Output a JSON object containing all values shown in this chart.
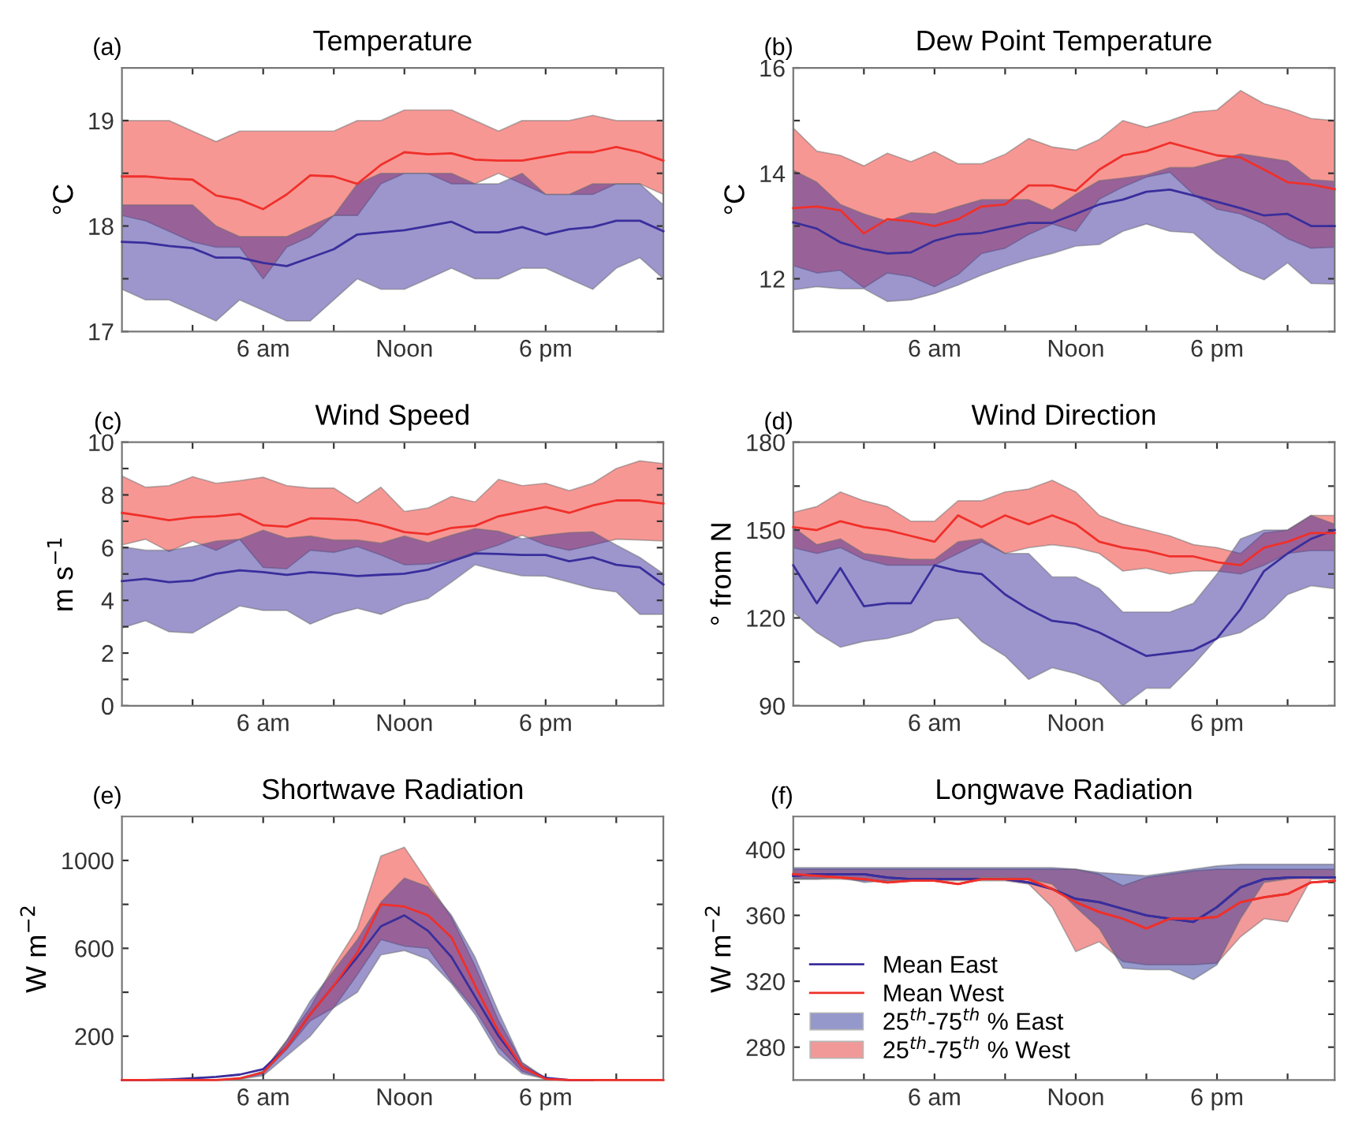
{
  "chart_data": [
    {
      "type": "line",
      "title": "Temperature",
      "ylabel": "°C",
      "annotations": [
        "(a)"
      ],
      "legend": false,
      "categories": [
        null,
        null,
        null,
        null,
        null,
        null,
        "6 am",
        null,
        null,
        null,
        null,
        null,
        "Noon",
        null,
        null,
        null,
        null,
        null,
        "6 pm",
        null,
        null,
        null,
        null,
        null
      ],
      "ylim": [
        17,
        19.5
      ],
      "yticks": [
        17,
        {
          "value": 17.5,
          "label": null
        },
        18,
        {
          "value": 18.5,
          "label": null
        },
        19
      ],
      "series": [
        {
          "color": "#3a2e9c",
          "values": [
            17.85,
            17.84,
            17.81,
            17.79,
            17.7,
            17.7,
            17.65,
            17.62,
            17.7,
            17.78,
            17.92,
            17.94,
            17.96,
            18.0,
            18.04,
            17.94,
            17.94,
            17.99,
            17.92,
            17.97,
            17.99,
            18.05,
            18.05,
            17.95
          ],
          "lower": [
            17.4,
            17.3,
            17.3,
            17.2,
            17.1,
            17.3,
            17.2,
            17.1,
            17.1,
            17.3,
            17.5,
            17.4,
            17.4,
            17.5,
            17.6,
            17.5,
            17.5,
            17.6,
            17.6,
            17.5,
            17.4,
            17.6,
            17.7,
            17.5
          ],
          "upper": [
            18.2,
            18.2,
            18.2,
            18.2,
            18.0,
            17.9,
            17.9,
            17.9,
            18.0,
            18.1,
            18.4,
            18.5,
            18.5,
            18.5,
            18.5,
            18.4,
            18.4,
            18.5,
            18.3,
            18.3,
            18.4,
            18.4,
            18.4,
            18.2
          ]
        },
        {
          "color": "#f0302a",
          "values": [
            18.47,
            18.47,
            18.45,
            18.44,
            18.29,
            18.25,
            18.16,
            18.3,
            18.48,
            18.47,
            18.4,
            18.58,
            18.7,
            18.68,
            18.69,
            18.63,
            18.62,
            18.62,
            18.66,
            18.7,
            18.7,
            18.75,
            18.7,
            18.62
          ],
          "lower": [
            18.1,
            18.05,
            17.95,
            17.85,
            17.8,
            17.8,
            17.5,
            17.8,
            17.9,
            18.1,
            18.1,
            18.4,
            18.5,
            18.5,
            18.4,
            18.4,
            18.5,
            18.4,
            18.3,
            18.3,
            18.3,
            18.4,
            18.4,
            18.3
          ],
          "upper": [
            19.0,
            19.0,
            19.0,
            18.9,
            18.8,
            18.9,
            18.9,
            18.9,
            18.9,
            18.9,
            19.0,
            19.0,
            19.1,
            19.1,
            19.1,
            19.0,
            18.9,
            19.0,
            19.0,
            19.0,
            19.05,
            19.0,
            19.0,
            19.0
          ]
        }
      ]
    },
    {
      "type": "line",
      "title": "Dew Point Temperature",
      "ylabel": "°C",
      "annotations": [
        "(b)"
      ],
      "legend": false,
      "categories": [
        null,
        null,
        null,
        null,
        null,
        null,
        "6 am",
        null,
        null,
        null,
        null,
        null,
        "Noon",
        null,
        null,
        null,
        null,
        null,
        "6 pm",
        null,
        null,
        null,
        null,
        null
      ],
      "ylim": [
        11,
        16
      ],
      "yticks": [
        {
          "value": 11,
          "label": null
        },
        12,
        {
          "value": 13,
          "label": null
        },
        14,
        {
          "value": 15,
          "label": null
        },
        16
      ],
      "series": [
        {
          "color": "#3a2e9c",
          "values": [
            13.07,
            12.95,
            12.69,
            12.56,
            12.48,
            12.5,
            12.72,
            12.84,
            12.87,
            12.97,
            13.06,
            13.06,
            13.23,
            13.41,
            13.5,
            13.65,
            13.69,
            13.58,
            13.46,
            13.34,
            13.2,
            13.23,
            13.0,
            13.0
          ],
          "lower": [
            11.79,
            11.85,
            11.81,
            11.81,
            11.57,
            11.6,
            11.72,
            11.88,
            12.07,
            12.23,
            12.37,
            12.48,
            12.62,
            12.65,
            12.9,
            13.04,
            12.9,
            12.87,
            12.48,
            12.16,
            11.98,
            12.3,
            11.91,
            11.9
          ],
          "upper": [
            14.06,
            13.83,
            13.41,
            13.23,
            13.09,
            13.25,
            13.23,
            13.37,
            13.5,
            13.5,
            13.5,
            13.3,
            13.6,
            13.86,
            13.91,
            13.97,
            14.11,
            14.11,
            14.23,
            14.37,
            14.3,
            14.23,
            13.88,
            13.85
          ]
        },
        {
          "color": "#f0302a",
          "values": [
            13.34,
            13.37,
            13.3,
            12.86,
            13.13,
            13.09,
            13.0,
            13.13,
            13.37,
            13.41,
            13.77,
            13.77,
            13.67,
            14.07,
            14.34,
            14.42,
            14.58,
            14.46,
            14.34,
            14.3,
            14.07,
            13.83,
            13.79,
            13.7
          ],
          "lower": [
            12.25,
            12.11,
            12.16,
            11.83,
            12.11,
            12.04,
            11.85,
            12.08,
            12.48,
            12.58,
            12.84,
            13.04,
            12.9,
            13.51,
            13.74,
            13.93,
            14.02,
            13.6,
            13.32,
            13.23,
            13.04,
            12.76,
            12.58,
            12.6
          ],
          "upper": [
            14.86,
            14.42,
            14.34,
            14.14,
            14.38,
            14.22,
            14.41,
            14.18,
            14.18,
            14.36,
            14.66,
            14.5,
            14.44,
            14.64,
            15.0,
            14.87,
            15.0,
            15.16,
            15.2,
            15.57,
            15.32,
            15.2,
            15.04,
            15.0
          ]
        }
      ]
    },
    {
      "type": "line",
      "title": "Wind Speed",
      "ylabel": "m s$^{−1}$",
      "annotations": [
        "(c)"
      ],
      "legend": false,
      "categories": [
        null,
        null,
        null,
        null,
        null,
        null,
        "6 am",
        null,
        null,
        null,
        null,
        null,
        "Noon",
        null,
        null,
        null,
        null,
        null,
        "6 pm",
        null,
        null,
        null,
        null,
        null
      ],
      "ylim": [
        0,
        10
      ],
      "yticks": [
        0,
        {
          "value": 1,
          "label": null
        },
        2,
        {
          "value": 3,
          "label": null
        },
        4,
        {
          "value": 5,
          "label": null
        },
        6,
        {
          "value": 7,
          "label": null
        },
        8,
        {
          "value": 9,
          "label": null
        },
        10
      ],
      "series": [
        {
          "color": "#3a2e9c",
          "values": [
            4.73,
            4.82,
            4.69,
            4.75,
            5.01,
            5.14,
            5.07,
            4.97,
            5.07,
            5.01,
            4.92,
            4.97,
            5.01,
            5.16,
            5.48,
            5.78,
            5.76,
            5.72,
            5.72,
            5.48,
            5.63,
            5.35,
            5.25,
            4.6
          ],
          "lower": [
            2.95,
            3.23,
            2.81,
            2.76,
            3.28,
            3.79,
            3.62,
            3.62,
            3.1,
            3.47,
            3.7,
            3.47,
            3.85,
            4.07,
            4.69,
            5.35,
            5.12,
            4.93,
            4.92,
            4.69,
            4.45,
            4.32,
            3.47,
            3.47
          ],
          "upper": [
            6.04,
            5.9,
            5.9,
            6.04,
            6.25,
            6.32,
            6.66,
            6.36,
            6.44,
            6.29,
            6.29,
            6.17,
            6.44,
            6.19,
            6.47,
            6.72,
            6.62,
            6.34,
            6.47,
            6.57,
            6.6,
            6.1,
            5.63,
            5.01
          ]
        },
        {
          "color": "#f0302a",
          "values": [
            7.32,
            7.19,
            7.04,
            7.15,
            7.19,
            7.28,
            6.85,
            6.79,
            7.11,
            7.09,
            7.04,
            6.85,
            6.59,
            6.51,
            6.75,
            6.83,
            7.19,
            7.37,
            7.54,
            7.32,
            7.6,
            7.79,
            7.79,
            7.67
          ],
          "lower": [
            6.1,
            6.32,
            5.85,
            6.25,
            5.9,
            6.32,
            5.25,
            5.2,
            5.9,
            5.82,
            6.04,
            5.72,
            5.35,
            5.38,
            5.53,
            5.82,
            6.1,
            6.47,
            6.1,
            5.9,
            6.1,
            6.32,
            6.29,
            6.25
          ],
          "upper": [
            8.72,
            8.29,
            8.35,
            8.69,
            8.44,
            8.54,
            8.67,
            8.35,
            8.26,
            8.26,
            7.69,
            8.29,
            7.37,
            7.5,
            7.94,
            7.73,
            8.59,
            8.35,
            8.44,
            8.16,
            8.44,
            9.0,
            9.29,
            9.19
          ]
        }
      ]
    },
    {
      "type": "line",
      "title": "Wind Direction",
      "ylabel": "° from N",
      "annotations": [
        "(d)"
      ],
      "legend": false,
      "categories": [
        null,
        null,
        null,
        null,
        null,
        null,
        "6 am",
        null,
        null,
        null,
        null,
        null,
        "Noon",
        null,
        null,
        null,
        null,
        null,
        "6 pm",
        null,
        null,
        null,
        null,
        null
      ],
      "ylim": [
        90,
        180
      ],
      "yticks": [
        90,
        {
          "value": 105,
          "label": null
        },
        120,
        {
          "value": 135,
          "label": null
        },
        150,
        {
          "value": 165,
          "label": null
        },
        180
      ],
      "series": [
        {
          "color": "#3a2e9c",
          "values": [
            138,
            125,
            137,
            124,
            125,
            125,
            138,
            136,
            135,
            128,
            123,
            119,
            118,
            115,
            111,
            107,
            108,
            109,
            113,
            123,
            136,
            142,
            147,
            150
          ],
          "lower": [
            122,
            115,
            110,
            112,
            113,
            115,
            119,
            120,
            112,
            107,
            99,
            103,
            101,
            98,
            90,
            96,
            96,
            104,
            113,
            115,
            120,
            128,
            131,
            130
          ],
          "upper": [
            151,
            145,
            147,
            142,
            141,
            140,
            140,
            146,
            147,
            142,
            142,
            134,
            134,
            130,
            122,
            122,
            122,
            125,
            135,
            147,
            150,
            150,
            155,
            152
          ]
        },
        {
          "color": "#f0302a",
          "values": [
            151,
            150,
            153,
            151,
            150,
            148,
            146,
            155,
            151,
            155,
            152,
            155,
            152,
            146,
            144,
            143,
            141,
            141,
            139,
            138,
            144,
            146,
            149,
            149
          ],
          "lower": [
            144,
            142,
            144,
            140,
            138,
            138,
            138,
            142,
            146,
            142,
            144,
            145,
            144,
            142,
            136,
            137,
            135,
            136,
            136,
            135,
            138,
            142,
            143,
            143
          ],
          "upper": [
            156,
            158,
            163,
            160,
            158,
            153,
            153,
            160,
            160,
            163,
            164,
            167,
            163,
            155,
            152,
            150,
            148,
            145,
            144,
            142,
            149,
            150,
            155,
            155
          ]
        }
      ]
    },
    {
      "type": "line",
      "title": "Shortwave Radiation",
      "ylabel": "W m$^{−2}$",
      "annotations": [
        "(e)"
      ],
      "legend": false,
      "categories": [
        null,
        null,
        null,
        null,
        null,
        null,
        "6 am",
        null,
        null,
        null,
        null,
        null,
        "Noon",
        null,
        null,
        null,
        null,
        null,
        "6 pm",
        null,
        null,
        null,
        null,
        null
      ],
      "ylim": [
        0,
        1200
      ],
      "yticks": [
        200,
        {
          "value": 400,
          "label": null
        },
        600,
        {
          "value": 800,
          "label": null
        },
        1000
      ],
      "series": [
        {
          "color": "#3a2e9c",
          "values": [
            0,
            0,
            3,
            8,
            15,
            25,
            50,
            150,
            300,
            430,
            560,
            700,
            750,
            680,
            560,
            380,
            200,
            60,
            10,
            0,
            0,
            null,
            null,
            null
          ],
          "lower": [
            0,
            0,
            0,
            0,
            0,
            5,
            20,
            110,
            200,
            330,
            400,
            570,
            590,
            550,
            440,
            300,
            120,
            30,
            5,
            0,
            0,
            0,
            0,
            0
          ],
          "upper": [
            0,
            0,
            0,
            0,
            0,
            5,
            40,
            180,
            360,
            500,
            640,
            810,
            920,
            880,
            750,
            560,
            310,
            80,
            10,
            0,
            0,
            0,
            0,
            0
          ]
        },
        {
          "color": "#f0302a",
          "values": [
            0,
            0,
            0,
            0,
            0,
            8,
            35,
            150,
            300,
            430,
            580,
            800,
            790,
            750,
            650,
            430,
            220,
            60,
            5,
            0,
            0,
            0,
            0,
            0
          ],
          "lower": [
            0,
            0,
            0,
            0,
            0,
            5,
            30,
            140,
            270,
            330,
            480,
            640,
            610,
            600,
            450,
            320,
            150,
            40,
            5,
            0,
            0,
            0,
            0,
            0
          ],
          "upper": [
            0,
            0,
            0,
            0,
            0,
            10,
            40,
            180,
            330,
            520,
            690,
            1020,
            1060,
            900,
            740,
            520,
            270,
            80,
            5,
            0,
            0,
            0,
            0,
            0
          ]
        }
      ]
    },
    {
      "type": "line",
      "title": "Longwave Radiation",
      "ylabel": "W m$^{−2}$",
      "annotations": [
        "(f)"
      ],
      "legend": "bottom left",
      "categories": [
        null,
        null,
        null,
        null,
        null,
        null,
        "6 am",
        null,
        null,
        null,
        null,
        null,
        "Noon",
        null,
        null,
        null,
        null,
        null,
        "6 pm",
        null,
        null,
        null,
        null,
        null
      ],
      "ylim": [
        260,
        420
      ],
      "yticks": [
        280,
        {
          "value": 300,
          "label": null
        },
        320,
        {
          "value": 340,
          "label": null
        },
        360,
        {
          "value": 380,
          "label": null
        },
        400
      ],
      "series": [
        {
          "name": "Mean East",
          "color": "#3a2e9c",
          "values": [
            384,
            385,
            385,
            385,
            383,
            382,
            382,
            382,
            382,
            382,
            380,
            376,
            370,
            368,
            364,
            360,
            358,
            356,
            365,
            377,
            382,
            383,
            383,
            383
          ]
        },
        {
          "name": "Mean West",
          "color": "#f0302a",
          "values": [
            385,
            384,
            383,
            382,
            380,
            381,
            381,
            379,
            382,
            382,
            382,
            376,
            368,
            362,
            358,
            352,
            358,
            358,
            359,
            368,
            371,
            373,
            380,
            381
          ]
        },
        {
          "name": "25$^{th}$-75$^{th}$ % East",
          "color": "#2b3399",
          "values": [
            384,
            385,
            385,
            385,
            383,
            382,
            382,
            382,
            382,
            382,
            380,
            376,
            370,
            368,
            364,
            360,
            358,
            356,
            365,
            377,
            382,
            383,
            383,
            383
          ],
          "lower": [
            382,
            382,
            383,
            380,
            381,
            382,
            382,
            382,
            383,
            383,
            382,
            379,
            365,
            352,
            328,
            327,
            327,
            321,
            330,
            358,
            380,
            382,
            383,
            383
          ],
          "upper": [
            389,
            389,
            389,
            389,
            389,
            389,
            389,
            389,
            389,
            389,
            389,
            389,
            388,
            386,
            385,
            384,
            386,
            388,
            390,
            391,
            391,
            391,
            391,
            391
          ]
        },
        {
          "name": "25$^{th}$-75$^{th}$ % West",
          "color": "#e53636",
          "values": [
            385,
            384,
            383,
            382,
            380,
            381,
            381,
            379,
            382,
            382,
            382,
            376,
            368,
            362,
            358,
            352,
            358,
            358,
            359,
            368,
            371,
            373,
            380,
            381
          ],
          "lower": [
            382,
            382,
            382,
            381,
            381,
            381,
            381,
            381,
            381,
            381,
            379,
            365,
            338,
            344,
            332,
            330,
            330,
            330,
            331,
            347,
            358,
            356,
            382,
            382
          ],
          "upper": [
            388,
            388,
            388,
            388,
            388,
            388,
            388,
            388,
            388,
            388,
            388,
            388,
            388,
            385,
            378,
            383,
            385,
            387,
            388,
            388,
            388,
            388,
            388,
            388
          ]
        }
      ]
    }
  ]
}
